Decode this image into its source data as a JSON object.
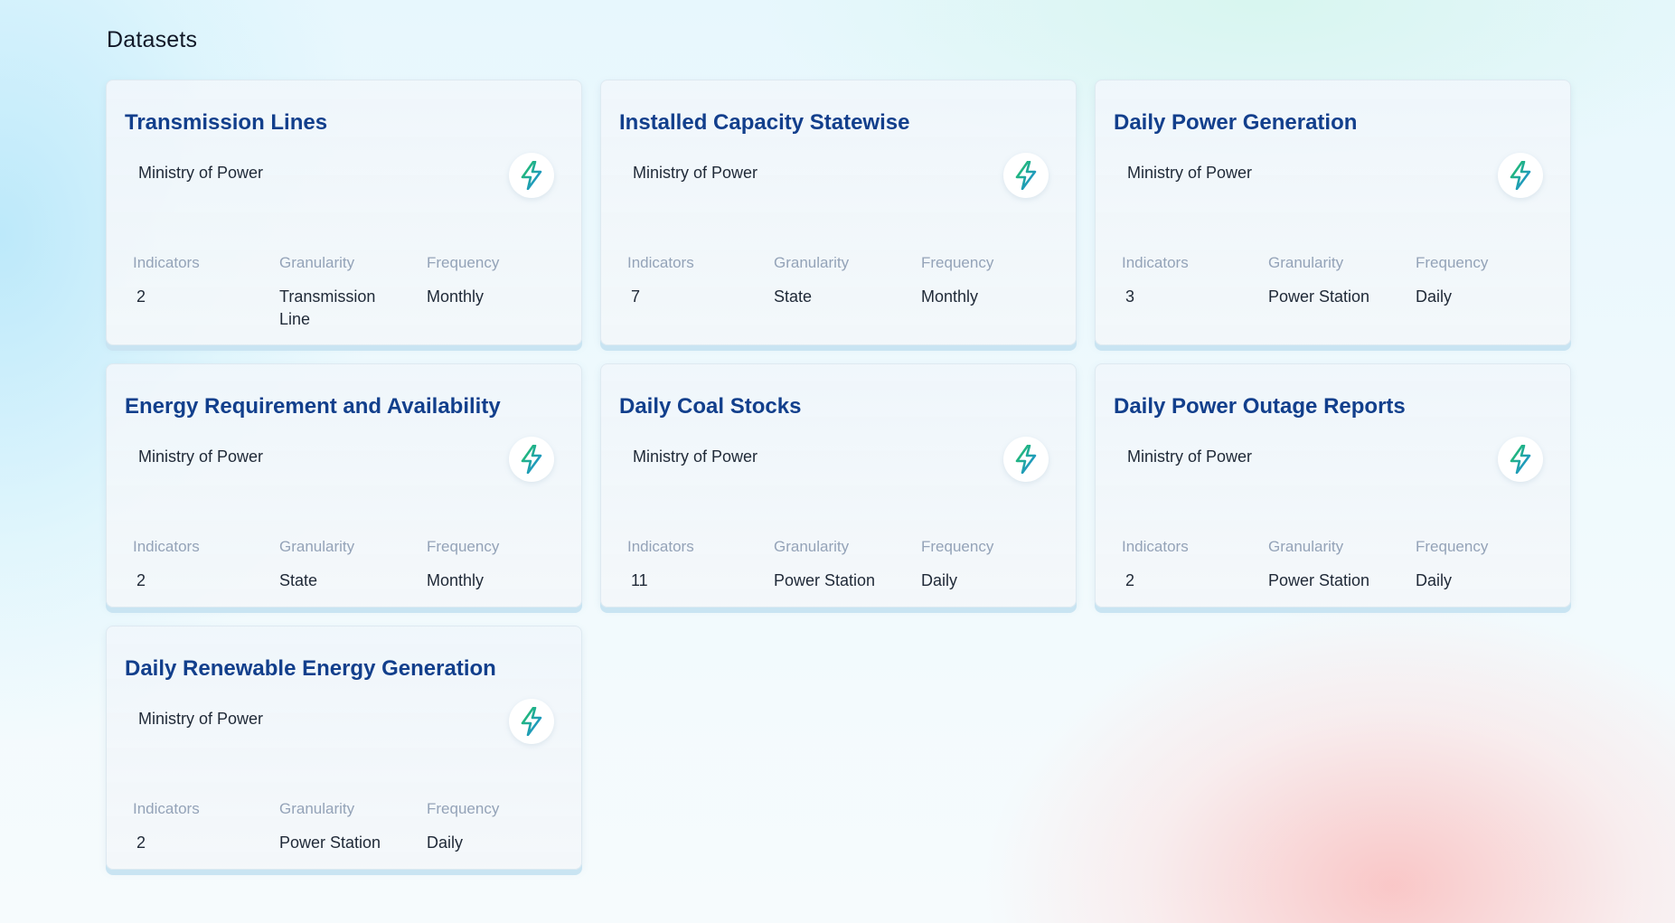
{
  "page": {
    "title": "Datasets"
  },
  "labels": {
    "indicators": "Indicators",
    "granularity": "Granularity",
    "frequency": "Frequency"
  },
  "icon": {
    "name": "lightning-bolt-icon",
    "colors": [
      "#22c55e",
      "#1e88e5"
    ]
  },
  "datasets": [
    {
      "title": "Transmission Lines",
      "source": "Ministry of Power",
      "indicators": "2",
      "granularity": "Transmission Line",
      "frequency": "Monthly"
    },
    {
      "title": "Installed Capacity Statewise",
      "source": "Ministry of Power",
      "indicators": "7",
      "granularity": "State",
      "frequency": "Monthly"
    },
    {
      "title": "Daily Power Generation",
      "source": "Ministry of Power",
      "indicators": "3",
      "granularity": "Power Station",
      "frequency": "Daily"
    },
    {
      "title": "Energy Requirement and Availability",
      "source": "Ministry of Power",
      "indicators": "2",
      "granularity": "State",
      "frequency": "Monthly"
    },
    {
      "title": "Daily Coal Stocks",
      "source": "Ministry of Power",
      "indicators": "11",
      "granularity": "Power Station",
      "frequency": "Daily"
    },
    {
      "title": "Daily Power Outage Reports",
      "source": "Ministry of Power",
      "indicators": "2",
      "granularity": "Power Station",
      "frequency": "Daily"
    },
    {
      "title": "Daily Renewable Energy Generation",
      "source": "Ministry of Power",
      "indicators": "2",
      "granularity": "Power Station",
      "frequency": "Daily"
    }
  ]
}
